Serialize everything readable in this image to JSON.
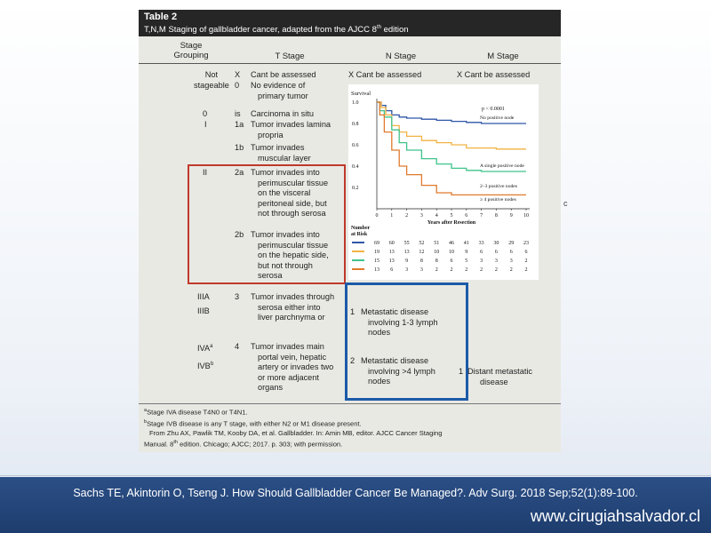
{
  "table": {
    "title": "Table 2",
    "subtitle": "T,N,M Staging of gallbladder cancer, adapted from the AJCC 8",
    "subtitle_sup": "th",
    "subtitle_end": " edition",
    "headers": {
      "stage_grouping_1": "Stage",
      "stage_grouping_2": "Grouping",
      "t_stage": "T Stage",
      "n_stage": "N Stage",
      "m_stage": "M Stage"
    },
    "rows": {
      "not_stageable_1": "Not",
      "not_stageable_2": "stageable",
      "tx_code": "X",
      "tx_desc": "Cant be assessed",
      "t0_code": "0",
      "t0_desc_1": "No evidence of",
      "t0_desc_2": "primary tumor",
      "nx": "X  Cant be assessed",
      "mx": "X  Cant be assessed",
      "stage0": "0",
      "tis_code": "is",
      "tis_desc": "Carcinoma in situ",
      "stage1": "I",
      "t1a_code": "1a",
      "t1a_desc_1": "Tumor invades lamina",
      "t1a_desc_2": "propria",
      "t1b_code": "1b",
      "t1b_desc_1": "Tumor invades",
      "t1b_desc_2": "muscular layer",
      "stage2": "II",
      "t2a_code": "2a",
      "t2a_desc_1": "Tumor invades into",
      "t2a_desc_2": "perimuscular tissue",
      "t2a_desc_3": "on the visceral",
      "t2a_desc_4": "peritoneal side, but",
      "t2a_desc_5": "not through serosa",
      "t2b_code": "2b",
      "t2b_desc_1": "Tumor invades into",
      "t2b_desc_2": "perimuscular tissue",
      "t2b_desc_3": "on the hepatic side,",
      "t2b_desc_4": "but not through",
      "t2b_desc_5": "serosa",
      "stage3a": "IIIA",
      "stage3b": "IIIB",
      "t3_code": "3",
      "t3_desc_1": "Tumor invades through",
      "t3_desc_2": "serosa either into",
      "t3_desc_3": "liver parchnyma or",
      "n1_code": "1",
      "n1_desc_1": "Metastatic disease",
      "n1_desc_2": "involving 1-3 lymph",
      "n1_desc_3": "nodes",
      "stage4a": "IVA",
      "stage4a_sup": "a",
      "stage4b": "IVB",
      "stage4b_sup": "b",
      "t4_code": "4",
      "t4_desc_1": "Tumor invades main",
      "t4_desc_2": "portal vein, hepatic",
      "t4_desc_3": "artery or invades two",
      "t4_desc_4": "or more adjacent",
      "t4_desc_5": "organs",
      "n2_code": "2",
      "n2_desc_1": "Metastatic disease",
      "n2_desc_2": "involving >4 lymph",
      "n2_desc_3": "nodes",
      "m1_code": "1",
      "m1_desc_1": "Distant metastatic",
      "m1_desc_2": "disease"
    },
    "footnotes": {
      "a_sup": "a",
      "a": "Stage IVA disease T4N0 or T4N1.",
      "b_sup": "b",
      "b": "Stage IVB disease is any T stage, with either N2 or M1 disease present.",
      "source_1": "From Zhu AX, Pawlik TM, Kooby DA, et al. Gallbladder. In: Amin MB, editor. AJCC Cancer Staging",
      "source_2a": "Manual. 8",
      "source_2_sup": "th",
      "source_2b": " edition. Chicago; AJCC; 2017. p. 303; with permission."
    },
    "stub_char": "c"
  },
  "chart_data": {
    "type": "line",
    "ylabel": "Survival",
    "xlabel": "Years after Resection",
    "x": [
      0,
      1,
      2,
      3,
      4,
      5,
      6,
      7,
      8,
      9,
      10
    ],
    "xlim": [
      0,
      10
    ],
    "ylim": [
      0,
      1.0
    ],
    "yticks": [
      "1.0",
      "0.8",
      "0.6",
      "0.4",
      "0.2"
    ],
    "ytick_values": [
      1.0,
      0.8,
      0.6,
      0.4,
      0.2
    ],
    "annotation": "p < 0.0001",
    "risk_title_1": "Number",
    "risk_title_2": "at Risk",
    "series": [
      {
        "name": "No positive node",
        "color": "#2f56a6",
        "points": [
          [
            0,
            1.0
          ],
          [
            0.3,
            0.97
          ],
          [
            0.6,
            0.92
          ],
          [
            1,
            0.88
          ],
          [
            1.5,
            0.86
          ],
          [
            2,
            0.85
          ],
          [
            3,
            0.84
          ],
          [
            4,
            0.83
          ],
          [
            5,
            0.82
          ],
          [
            6,
            0.81
          ],
          [
            7,
            0.8
          ],
          [
            8,
            0.8
          ],
          [
            10,
            0.8
          ]
        ],
        "at_risk": [
          "69",
          "60",
          "55",
          "52",
          "51",
          "46",
          "41",
          "33",
          "30",
          "29",
          "23"
        ]
      },
      {
        "name": "A single positive node",
        "color": "#f2b243",
        "points": [
          [
            0,
            1.0
          ],
          [
            0.3,
            0.95
          ],
          [
            0.6,
            0.88
          ],
          [
            1,
            0.78
          ],
          [
            1.5,
            0.72
          ],
          [
            2,
            0.68
          ],
          [
            3,
            0.64
          ],
          [
            4,
            0.62
          ],
          [
            5,
            0.6
          ],
          [
            6,
            0.57
          ],
          [
            7,
            0.57
          ],
          [
            8,
            0.56
          ],
          [
            10,
            0.56
          ]
        ],
        "at_risk": [
          "19",
          "13",
          "13",
          "12",
          "10",
          "10",
          "9",
          "6",
          "6",
          "6",
          "6"
        ]
      },
      {
        "name": "2–3 positive nodes",
        "color": "#3fc38b",
        "points": [
          [
            0,
            1.0
          ],
          [
            0.2,
            0.92
          ],
          [
            0.5,
            0.86
          ],
          [
            1,
            0.74
          ],
          [
            1.5,
            0.62
          ],
          [
            2,
            0.55
          ],
          [
            3,
            0.47
          ],
          [
            4,
            0.42
          ],
          [
            5,
            0.38
          ],
          [
            6,
            0.36
          ],
          [
            7,
            0.35
          ],
          [
            8,
            0.35
          ],
          [
            10,
            0.35
          ]
        ],
        "at_risk": [
          "15",
          "13",
          "9",
          "8",
          "8",
          "6",
          "5",
          "3",
          "3",
          "3",
          "2"
        ]
      },
      {
        "name": "≥ 4 positive nodes",
        "color": "#e07a2c",
        "points": [
          [
            0,
            1.0
          ],
          [
            0.2,
            0.88
          ],
          [
            0.5,
            0.72
          ],
          [
            1,
            0.55
          ],
          [
            1.5,
            0.4
          ],
          [
            2,
            0.32
          ],
          [
            3,
            0.22
          ],
          [
            4,
            0.15
          ],
          [
            5,
            0.13
          ],
          [
            6,
            0.13
          ],
          [
            8,
            0.13
          ],
          [
            10,
            0.13
          ]
        ],
        "at_risk": [
          "13",
          "6",
          "3",
          "3",
          "2",
          "2",
          "2",
          "2",
          "2",
          "2",
          "2"
        ]
      }
    ]
  },
  "footer": {
    "citation": "Sachs TE, Akintorin O, Tseng J. How Should Gallbladder Cancer Be Managed?. Adv Surg. 2018 Sep;52(1):89-100.",
    "website": "www.cirugiahsalvador.cl",
    "bar_color": "#234575"
  }
}
